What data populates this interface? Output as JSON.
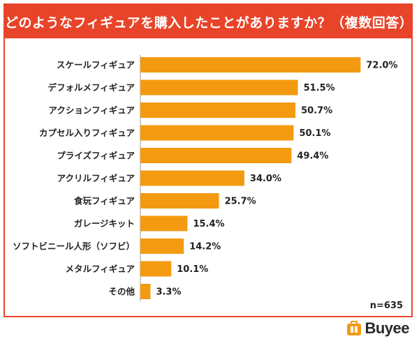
{
  "chart_data": {
    "type": "bar",
    "orientation": "horizontal",
    "title": "どのようなフィギュアを購入したことがありますか？（複数回答）",
    "categories": [
      "スケールフィギュア",
      "デフォルメフィギュア",
      "アクションフィギュア",
      "カプセル入りフィギュア",
      "プライズフィギュア",
      "アクリルフィギュア",
      "食玩フィギュア",
      "ガレージキット",
      "ソフトビニール人形（ソフビ）",
      "メタルフィギュア",
      "その他"
    ],
    "values": [
      72.0,
      51.5,
      50.7,
      50.1,
      49.4,
      34.0,
      25.7,
      15.4,
      14.2,
      10.1,
      3.3
    ],
    "value_labels": [
      "72.0%",
      "51.5%",
      "50.7%",
      "50.1%",
      "49.4%",
      "34.0%",
      "25.7%",
      "15.4%",
      "14.2%",
      "10.1%",
      "3.3%"
    ],
    "xlim": [
      0,
      100
    ],
    "bar_color": "#f39a11",
    "grid": false
  },
  "sample_size": "n=635",
  "brand": {
    "name": "Buyee",
    "color": "#f39a11"
  },
  "colors": {
    "title_bg": "#e8442a",
    "border": "#e8442a"
  }
}
